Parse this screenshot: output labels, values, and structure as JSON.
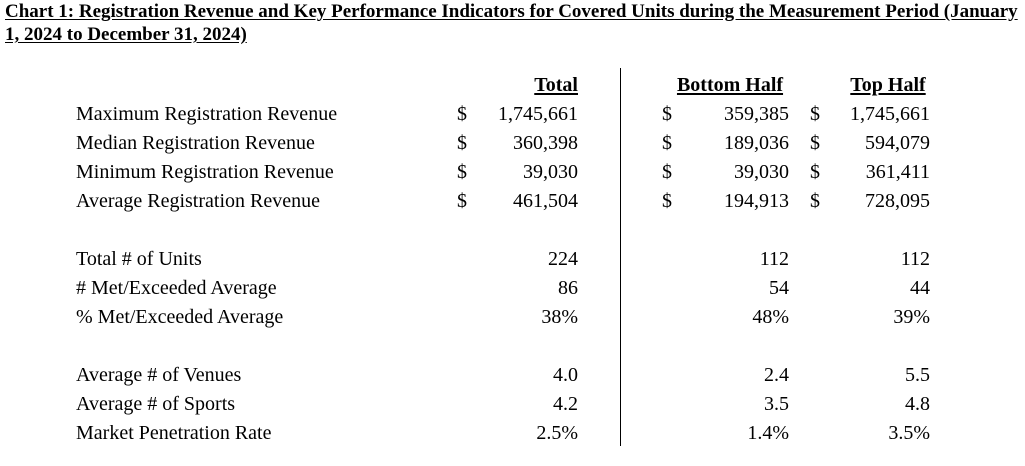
{
  "title": "Chart 1: Registration Revenue and Key Performance Indicators for Covered Units during the Measurement Period (January 1, 2024 to December 31, 2024)",
  "headers": {
    "total": "Total",
    "bottom": "Bottom Half",
    "top": "Top Half"
  },
  "currency_symbol": "$",
  "revenue_rows": [
    {
      "label": "Maximum Registration Revenue",
      "total": "1,745,661",
      "bottom": "359,385",
      "top": "1,745,661"
    },
    {
      "label": "Median Registration Revenue",
      "total": "360,398",
      "bottom": "189,036",
      "top": "594,079"
    },
    {
      "label": "Minimum Registration Revenue",
      "total": "39,030",
      "bottom": "39,030",
      "top": "361,411"
    },
    {
      "label": "Average Registration Revenue",
      "total": "461,504",
      "bottom": "194,913",
      "top": "728,095"
    }
  ],
  "unit_rows": [
    {
      "label": "Total # of Units",
      "total": "224",
      "bottom": "112",
      "top": "112"
    },
    {
      "label": "# Met/Exceeded Average",
      "total": "86",
      "bottom": "54",
      "top": "44"
    },
    {
      "label": "% Met/Exceeded Average",
      "total": "38%",
      "bottom": "48%",
      "top": "39%"
    }
  ],
  "other_rows": [
    {
      "label": "Average # of Venues",
      "total": "4.0",
      "bottom": "2.4",
      "top": "5.5"
    },
    {
      "label": "Average # of Sports",
      "total": "4.2",
      "bottom": "3.5",
      "top": "4.8"
    },
    {
      "label": "Market Penetration Rate",
      "total": "2.5%",
      "bottom": "1.4%",
      "top": "3.5%"
    }
  ]
}
